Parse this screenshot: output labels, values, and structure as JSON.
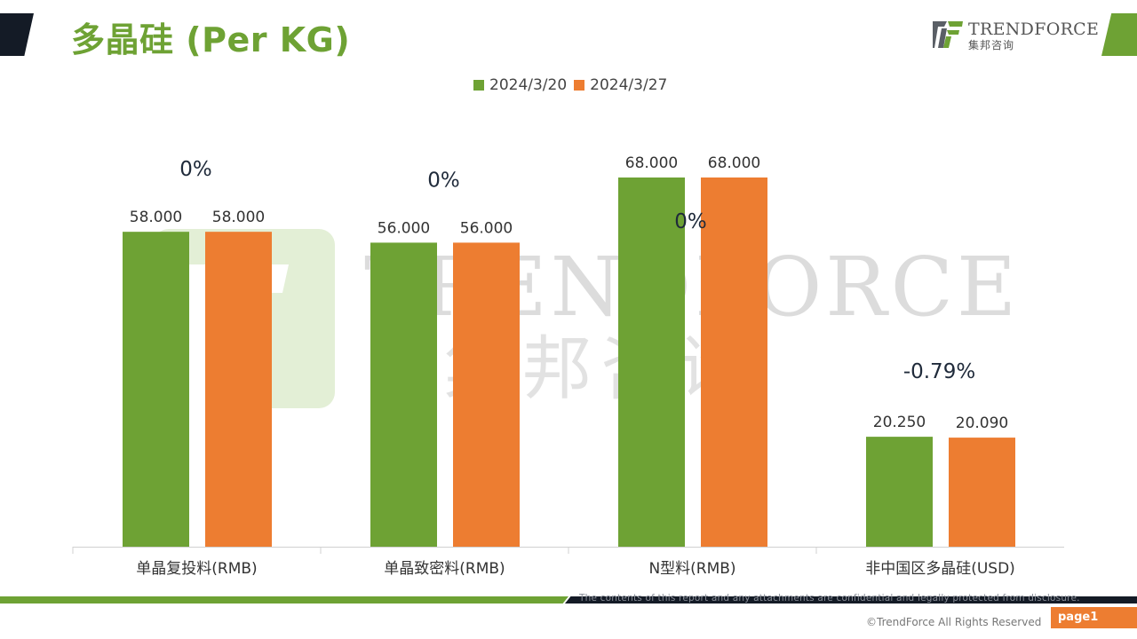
{
  "header": {
    "title": "多晶硅 (Per KG)",
    "logo_name": "TRENDFORCE",
    "logo_cn": "集邦咨询"
  },
  "watermark": {
    "en": "TRENDFORCE",
    "cn": "集邦咨询"
  },
  "colors": {
    "green": "#6ea234",
    "orange": "#ed7d31",
    "dark": "#141b26"
  },
  "chart_data": {
    "type": "bar",
    "title": "",
    "xlabel": "",
    "ylabel": "",
    "ylim": [
      0,
      70
    ],
    "grid": false,
    "legend": "top-center",
    "categories": [
      "单晶复投料(RMB)",
      "单晶致密料(RMB)",
      "N型料(RMB)",
      "非中国区多晶硅(USD)"
    ],
    "series": [
      {
        "name": "2024/3/20",
        "color": "#6ea234",
        "values": [
          58.0,
          56.0,
          68.0,
          20.25
        ],
        "labels": [
          "58.000",
          "56.000",
          "68.000",
          "20.250"
        ]
      },
      {
        "name": "2024/3/27",
        "color": "#ed7d31",
        "values": [
          58.0,
          56.0,
          68.0,
          20.09
        ],
        "labels": [
          "58.000",
          "56.000",
          "68.000",
          "20.090"
        ]
      }
    ],
    "annotations": [
      "0%",
      "0%",
      "0%",
      "-0.79%"
    ]
  },
  "footer": {
    "disclaimer": "The contents of this report and any attachments are confidential and legally protected from disclosure.",
    "copyright": "©TrendForce All Rights Reserved",
    "page": "page1"
  }
}
